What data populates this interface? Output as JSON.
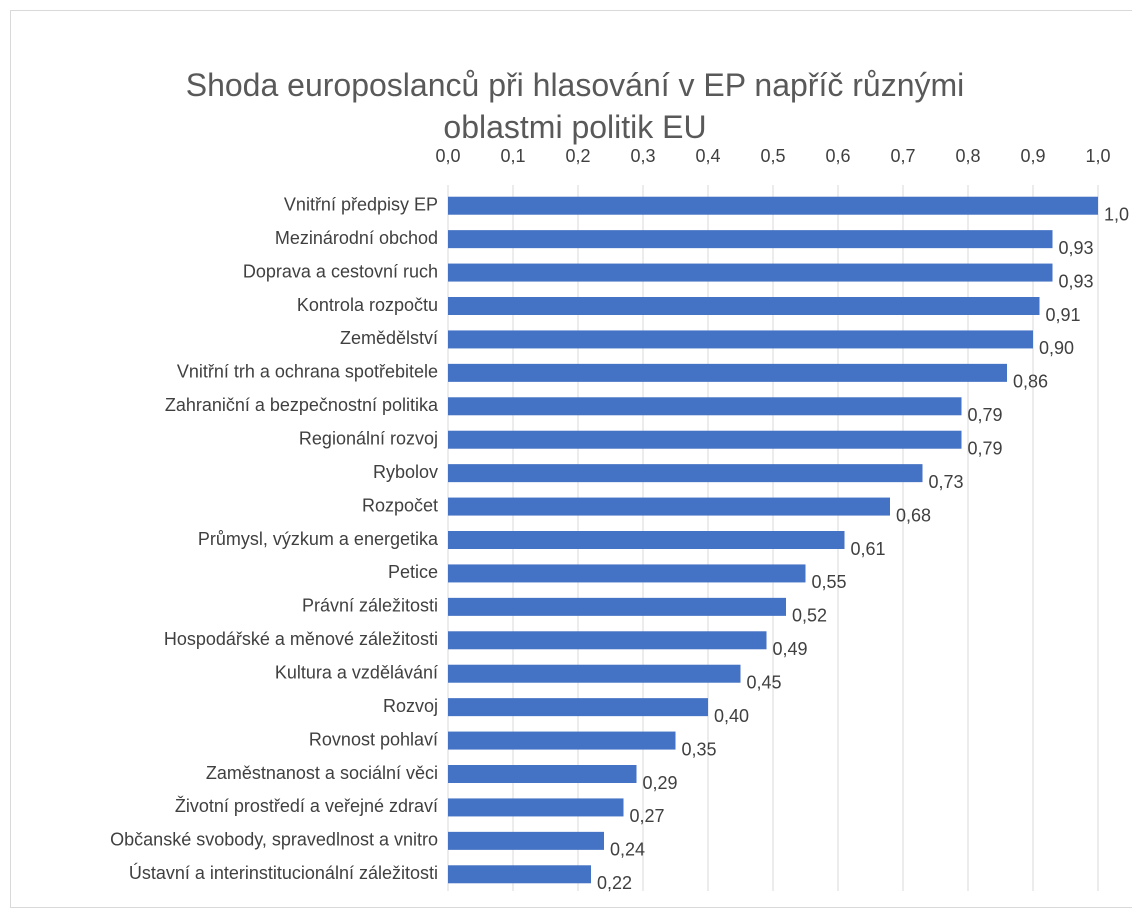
{
  "chart_data": {
    "type": "barh",
    "title": "Shoda europoslanců při hlasování v EP napříč různými oblastmi politik EU",
    "categories": [
      "Vnitřní předpisy EP",
      "Mezinárodní obchod",
      "Doprava a cestovní ruch",
      "Kontrola rozpočtu",
      "Zemědělství",
      "Vnitřní trh a ochrana spotřebitele",
      "Zahraniční a bezpečnostní politika",
      "Regionální rozvoj",
      "Rybolov",
      "Rozpočet",
      "Průmysl, výzkum a energetika",
      "Petice",
      "Právní záležitosti",
      "Hospodářské a měnové záležitosti",
      "Kultura a vzdělávání",
      "Rozvoj",
      "Rovnost pohlaví",
      "Zaměstnanost a sociální věci",
      "Životní prostředí a veřejné zdraví",
      "Občanské svobody, spravedlnost a vnitro",
      "Ústavní a interinstitucionální záležitosti"
    ],
    "values": [
      1.0,
      0.93,
      0.93,
      0.91,
      0.9,
      0.86,
      0.79,
      0.79,
      0.73,
      0.68,
      0.61,
      0.55,
      0.52,
      0.49,
      0.45,
      0.4,
      0.35,
      0.29,
      0.27,
      0.24,
      0.22
    ],
    "value_labels": [
      "1,0",
      "0,93",
      "0,93",
      "0,91",
      "0,90",
      "0,86",
      "0,79",
      "0,79",
      "0,73",
      "0,68",
      "0,61",
      "0,55",
      "0,52",
      "0,49",
      "0,45",
      "0,40",
      "0,35",
      "0,29",
      "0,27",
      "0,24",
      "0,22"
    ],
    "color": "#4472c4",
    "xlim": [
      0,
      1
    ],
    "xticks": [
      {
        "value": 0,
        "label": "0,0"
      },
      {
        "value": 0.1,
        "label": "0,1"
      },
      {
        "value": 0.2,
        "label": "0,2"
      },
      {
        "value": 0.3,
        "label": "0,3"
      },
      {
        "value": 0.4,
        "label": "0,4"
      },
      {
        "value": 0.5,
        "label": "0,5"
      },
      {
        "value": 0.6,
        "label": "0,6"
      },
      {
        "value": 0.7,
        "label": "0,7"
      },
      {
        "value": 0.8,
        "label": "0,8"
      },
      {
        "value": 0.9,
        "label": "0,9"
      },
      {
        "value": 1.0,
        "label": "1,0"
      }
    ],
    "grid": true
  }
}
